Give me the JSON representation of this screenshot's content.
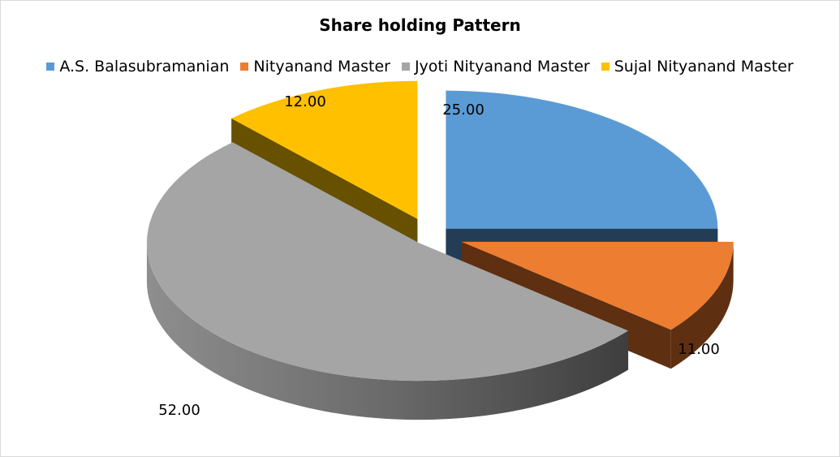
{
  "chart_data": {
    "type": "pie",
    "title": "Share holding Pattern",
    "legend_position": "top",
    "style": "3d-exploded",
    "slices": [
      {
        "name": "A.S. Balasubramanian",
        "value": 25.0,
        "label": "25.00",
        "color": "#5B9BD5"
      },
      {
        "name": "Nityanand Master",
        "value": 11.0,
        "label": "11.00",
        "color": "#ED7D31"
      },
      {
        "name": "Jyoti Nityanand Master",
        "value": 52.0,
        "label": "52.00",
        "color": "#A5A5A5"
      },
      {
        "name": "Sujal Nityanand Master",
        "value": 12.0,
        "label": "12.00",
        "color": "#FFC000"
      }
    ]
  }
}
